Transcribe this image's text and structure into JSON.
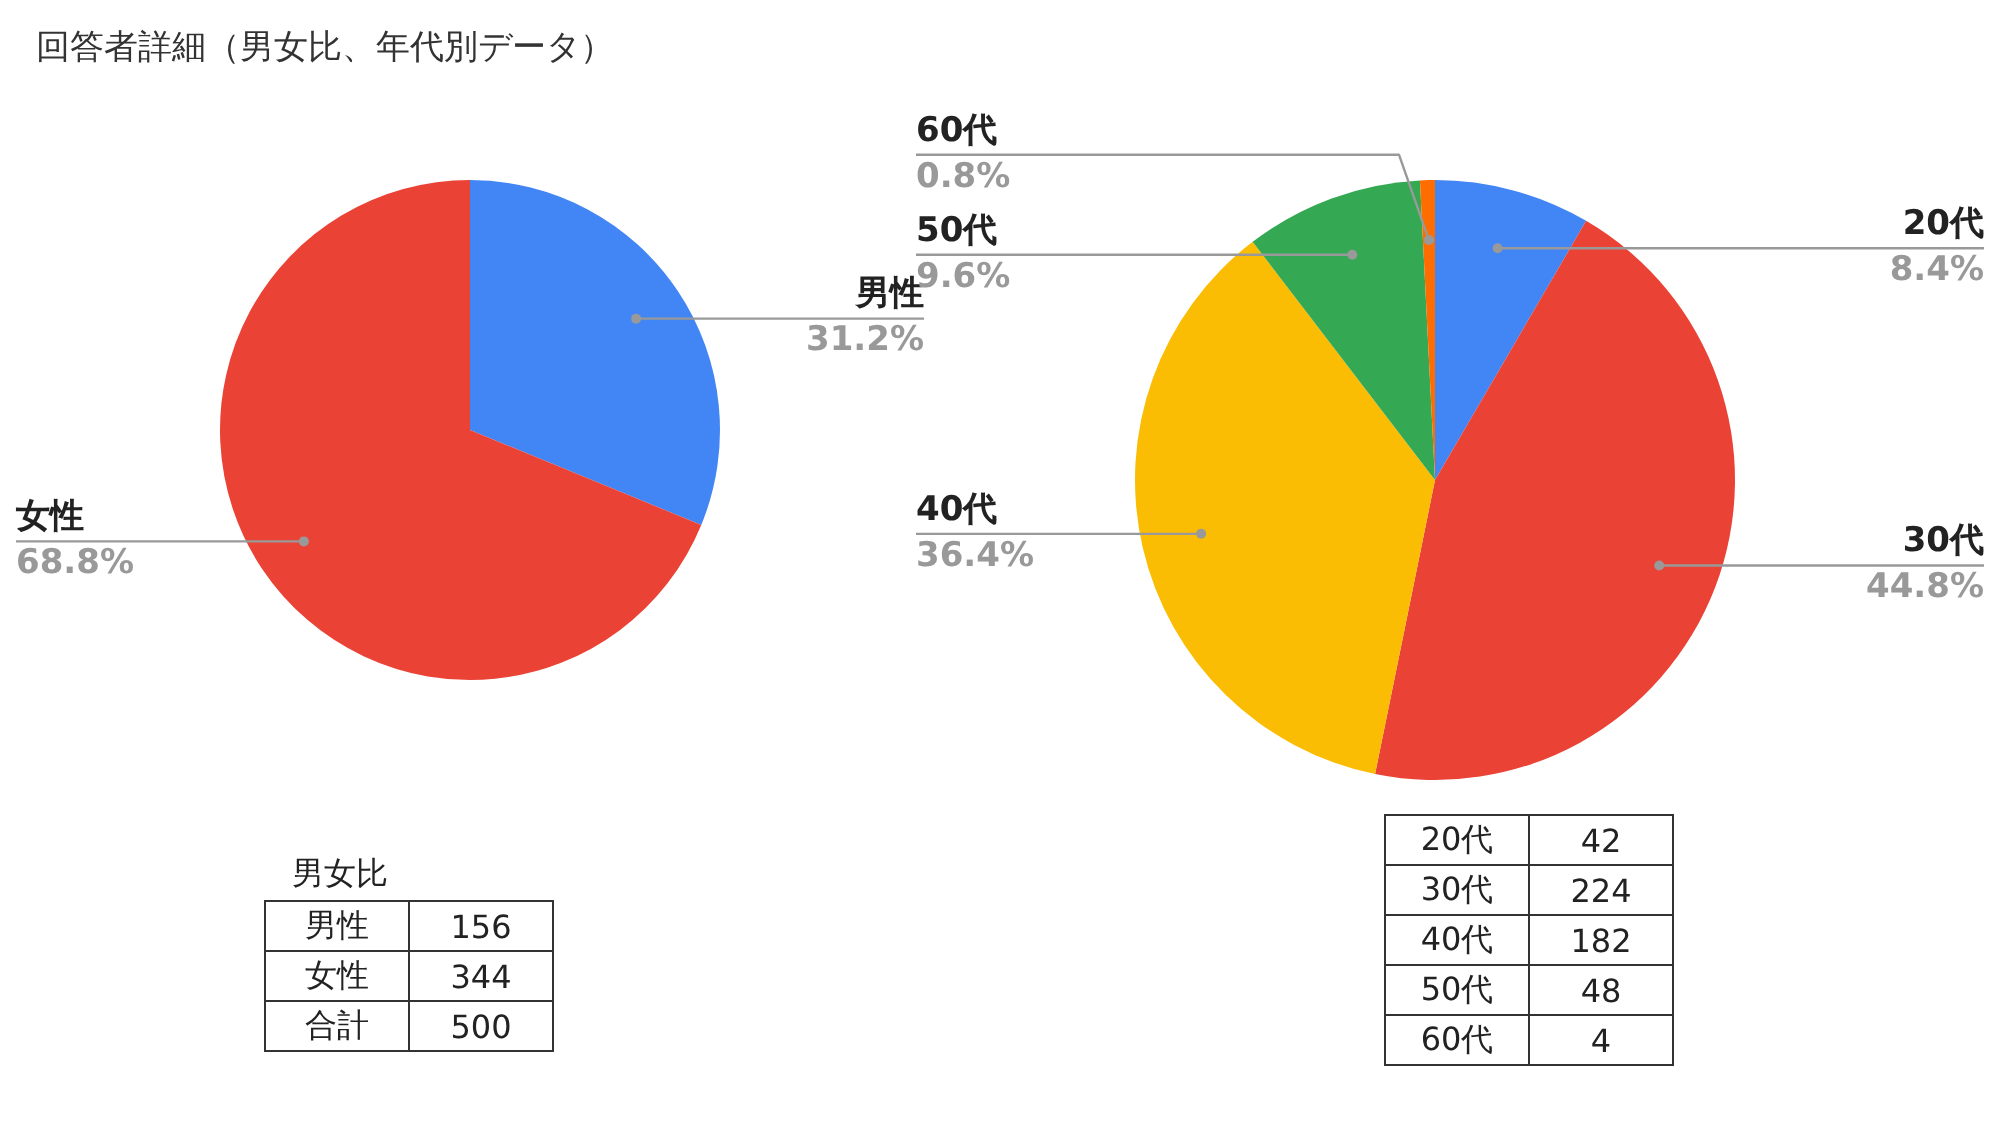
{
  "chart_data": [
    {
      "type": "pie",
      "title": "回答者詳細（男女比、年代別データ）",
      "categories": [
        "男性",
        "女性"
      ],
      "values": [
        31.2,
        68.8
      ],
      "colors": [
        "#4285f4",
        "#ea4335"
      ],
      "value_labels": [
        "31.2%",
        "68.8%"
      ],
      "annotations": [
        "男女比",
        "合計",
        "156",
        "344"
      ],
      "totals": [
        "500"
      ],
      "legend": false
    },
    {
      "type": "pie",
      "categories": [
        "20代",
        "30代",
        "40代",
        "50代",
        "60代"
      ],
      "values": [
        8.4,
        44.8,
        36.4,
        9.6,
        0.8
      ],
      "colors": [
        "#4285f4",
        "#ea4335",
        "#fbbc04",
        "#34a853",
        "#ff6d01"
      ],
      "value_labels": [
        "8.4%",
        "44.8%",
        "36.4%",
        "9.6%",
        "0.8%"
      ],
      "annotations": [
        "42",
        "224",
        "182",
        "48",
        "4"
      ],
      "legend": false
    }
  ]
}
